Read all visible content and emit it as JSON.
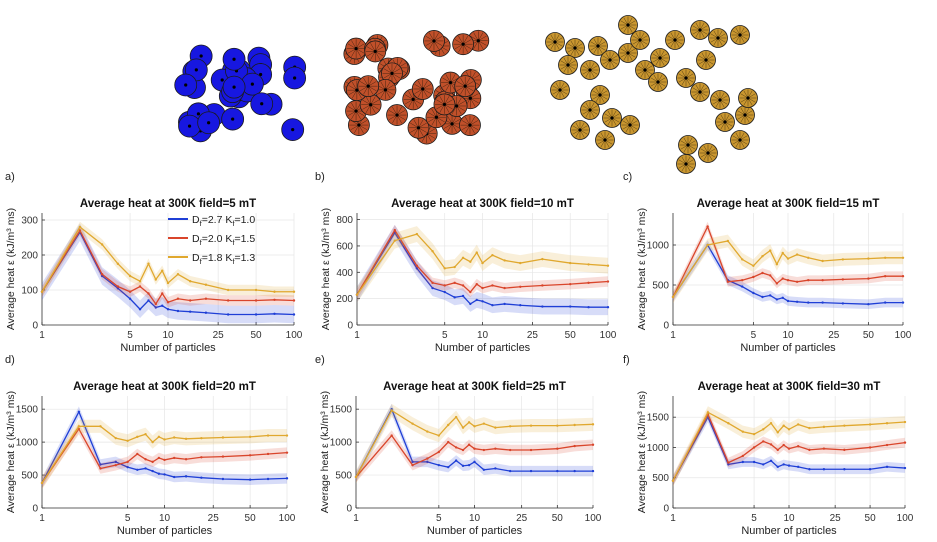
{
  "figure": {
    "colors": {
      "s1": "#1f3fd6",
      "s2": "#d9452b",
      "s3": "#e0a82e",
      "blue_cluster": "#1717e0",
      "red_cluster": "#c1502a",
      "gold_cluster": "#c9962f"
    },
    "legend": {
      "s1": {
        "main": "D",
        "sub1": "f",
        "mid": "=2.7 K",
        "sub2": "f",
        "end": "=1.0"
      },
      "s2": {
        "main": "D",
        "sub1": "f",
        "mid": "=2.0 K",
        "sub2": "f",
        "end": "=1.5"
      },
      "s3": {
        "main": "D",
        "sub1": "f",
        "mid": "=1.8 K",
        "sub2": "f",
        "end": "=1.3"
      }
    }
  },
  "chart_data": [
    {
      "panel": "a)",
      "type": "line",
      "title": "Average heat at 300K field=5 mT",
      "xlabel": "Number of particles",
      "ylabel": "Average heat ε (kJ/m³ ms)",
      "xscale": "log",
      "xlim": [
        1,
        100
      ],
      "ylim": [
        0,
        320
      ],
      "xticks": [
        1,
        5,
        10,
        25,
        50,
        100
      ],
      "xtick_labels": [
        "1",
        "5",
        "10",
        "25",
        "50",
        "100"
      ],
      "yticks": [
        0,
        100,
        200,
        300
      ],
      "ytick_labels": [
        "0",
        "100",
        "200",
        "300"
      ],
      "series": [
        {
          "name": "Df=2.7 Kf=1.0",
          "x": [
            1,
            2,
            3,
            4,
            5,
            6,
            7,
            8,
            9,
            10,
            12,
            15,
            20,
            30,
            50,
            70,
            100
          ],
          "values": [
            95,
            265,
            140,
            105,
            75,
            45,
            70,
            50,
            55,
            45,
            40,
            38,
            35,
            30,
            30,
            32,
            30
          ],
          "band": 25
        },
        {
          "name": "Df=2.0 Kf=1.5",
          "x": [
            1,
            2,
            3,
            4,
            5,
            6,
            7,
            8,
            9,
            10,
            12,
            15,
            20,
            30,
            50,
            70,
            100
          ],
          "values": [
            95,
            270,
            145,
            110,
            95,
            110,
            90,
            60,
            90,
            65,
            75,
            70,
            75,
            70,
            70,
            72,
            70
          ],
          "band": 15
        },
        {
          "name": "Df=1.8 Kf=1.3",
          "x": [
            1,
            2,
            3,
            4,
            5,
            6,
            7,
            8,
            9,
            10,
            12,
            15,
            20,
            30,
            50,
            70,
            100
          ],
          "values": [
            95,
            280,
            230,
            175,
            140,
            125,
            175,
            130,
            155,
            120,
            145,
            125,
            115,
            100,
            100,
            95,
            95
          ],
          "band": 15
        }
      ]
    },
    {
      "panel": "b)",
      "type": "line",
      "title": "Average heat at 300K field=10 mT",
      "xlabel": "Number of particles",
      "ylabel": "Average heat ε (kJ/m³ ms)",
      "xscale": "log",
      "xlim": [
        1,
        100
      ],
      "ylim": [
        0,
        850
      ],
      "xticks": [
        1,
        5,
        10,
        25,
        50,
        100
      ],
      "xtick_labels": [
        "1",
        "5",
        "10",
        "25",
        "50",
        "100"
      ],
      "yticks": [
        0,
        200,
        400,
        600,
        800
      ],
      "ytick_labels": [
        "0",
        "200",
        "400",
        "600",
        "800"
      ],
      "series": [
        {
          "name": "Df=2.7 Kf=1.0",
          "x": [
            1,
            2,
            3,
            4,
            5,
            6,
            7,
            8,
            9,
            10,
            12,
            15,
            20,
            30,
            50,
            70,
            100
          ],
          "values": [
            230,
            700,
            430,
            280,
            250,
            210,
            220,
            160,
            190,
            180,
            150,
            160,
            150,
            140,
            140,
            135,
            135
          ],
          "band": 60
        },
        {
          "name": "Df=2.0 Kf=1.5",
          "x": [
            1,
            2,
            3,
            4,
            5,
            6,
            7,
            8,
            9,
            10,
            12,
            15,
            20,
            30,
            50,
            70,
            100
          ],
          "values": [
            230,
            720,
            450,
            320,
            300,
            320,
            300,
            250,
            310,
            280,
            300,
            280,
            290,
            300,
            310,
            320,
            330
          ],
          "band": 40
        },
        {
          "name": "Df=1.8 Kf=1.3",
          "x": [
            1,
            2,
            3,
            4,
            5,
            6,
            7,
            8,
            9,
            10,
            12,
            15,
            20,
            30,
            50,
            70,
            100
          ],
          "values": [
            230,
            640,
            690,
            560,
            430,
            440,
            510,
            480,
            550,
            470,
            530,
            490,
            470,
            500,
            470,
            460,
            450
          ],
          "band": 60
        }
      ]
    },
    {
      "panel": "c)",
      "type": "line",
      "title": "Average heat at 300K field=15 mT",
      "xlabel": "Number of particles",
      "ylabel": "Average heat ε (kJ/m³ ms)",
      "xscale": "log",
      "xlim": [
        1,
        100
      ],
      "ylim": [
        0,
        1400
      ],
      "xticks": [
        1,
        5,
        10,
        25,
        50,
        100
      ],
      "xtick_labels": [
        "1",
        "5",
        "10",
        "25",
        "50",
        "100"
      ],
      "yticks": [
        0,
        500,
        1000
      ],
      "ytick_labels": [
        "0",
        "500",
        "1000"
      ],
      "series": [
        {
          "name": "Df=2.7 Kf=1.0",
          "x": [
            1,
            2,
            3,
            4,
            5,
            6,
            7,
            8,
            9,
            10,
            12,
            15,
            20,
            30,
            50,
            70,
            100
          ],
          "values": [
            350,
            1000,
            560,
            480,
            400,
            350,
            370,
            320,
            340,
            300,
            290,
            280,
            280,
            270,
            260,
            280,
            280
          ],
          "band": 60
        },
        {
          "name": "Df=2.0 Kf=1.5",
          "x": [
            1,
            2,
            3,
            4,
            5,
            6,
            7,
            8,
            9,
            10,
            12,
            15,
            20,
            30,
            50,
            70,
            100
          ],
          "values": [
            350,
            1230,
            540,
            560,
            600,
            650,
            620,
            520,
            580,
            560,
            540,
            560,
            560,
            570,
            580,
            610,
            610
          ],
          "band": 60
        },
        {
          "name": "Df=1.8 Kf=1.3",
          "x": [
            1,
            2,
            3,
            4,
            5,
            6,
            7,
            8,
            9,
            10,
            12,
            15,
            20,
            30,
            50,
            70,
            100
          ],
          "values": [
            350,
            1000,
            1050,
            820,
            740,
            860,
            930,
            760,
            900,
            830,
            880,
            840,
            800,
            820,
            830,
            840,
            840
          ],
          "band": 80
        }
      ]
    },
    {
      "panel": "d)",
      "type": "line",
      "title": "Average heat at 300K field=20 mT",
      "xlabel": "Number of particles",
      "ylabel": "Average heat ε (kJ/m³ ms)",
      "xscale": "log",
      "xlim": [
        1,
        100
      ],
      "ylim": [
        0,
        1700
      ],
      "xticks": [
        1,
        5,
        10,
        25,
        50,
        100
      ],
      "xtick_labels": [
        "1",
        "5",
        "10",
        "25",
        "50",
        "100"
      ],
      "yticks": [
        0,
        500,
        1000,
        1500
      ],
      "ytick_labels": [
        "0",
        "500",
        "1000",
        "1500"
      ],
      "series": [
        {
          "name": "Df=2.7 Kf=1.0",
          "x": [
            1,
            2,
            3,
            4,
            5,
            6,
            7,
            8,
            9,
            10,
            12,
            15,
            20,
            30,
            50,
            70,
            100
          ],
          "values": [
            380,
            1460,
            660,
            700,
            620,
            580,
            600,
            560,
            520,
            510,
            470,
            480,
            460,
            440,
            430,
            440,
            450
          ],
          "band": 80
        },
        {
          "name": "Df=2.0 Kf=1.5",
          "x": [
            1,
            2,
            3,
            4,
            5,
            6,
            7,
            8,
            9,
            10,
            12,
            15,
            20,
            30,
            50,
            70,
            100
          ],
          "values": [
            380,
            1200,
            600,
            650,
            700,
            820,
            740,
            700,
            760,
            730,
            760,
            740,
            770,
            780,
            800,
            820,
            840
          ],
          "band": 80
        },
        {
          "name": "Df=1.8 Kf=1.3",
          "x": [
            1,
            2,
            3,
            4,
            5,
            6,
            7,
            8,
            9,
            10,
            12,
            15,
            20,
            30,
            50,
            70,
            100
          ],
          "values": [
            380,
            1240,
            1240,
            1060,
            1020,
            1080,
            1120,
            1000,
            1080,
            1040,
            1070,
            1050,
            1060,
            1070,
            1080,
            1100,
            1100
          ],
          "band": 100
        }
      ]
    },
    {
      "panel": "e)",
      "type": "line",
      "title": "Average heat at 300K field=25 mT",
      "xlabel": "Number of particles",
      "ylabel": "Average heat ε (kJ/m³ ms)",
      "xscale": "log",
      "xlim": [
        1,
        100
      ],
      "ylim": [
        0,
        1700
      ],
      "xticks": [
        1,
        5,
        10,
        25,
        50,
        100
      ],
      "xtick_labels": [
        "1",
        "5",
        "10",
        "25",
        "50",
        "100"
      ],
      "yticks": [
        0,
        500,
        1000,
        1500
      ],
      "ytick_labels": [
        "0",
        "500",
        "1000",
        "1500"
      ],
      "series": [
        {
          "name": "Df=2.7 Kf=1.0",
          "x": [
            1,
            2,
            3,
            4,
            5,
            6,
            7,
            8,
            9,
            10,
            12,
            15,
            20,
            30,
            50,
            70,
            100
          ],
          "values": [
            470,
            1500,
            700,
            700,
            650,
            620,
            720,
            640,
            650,
            700,
            580,
            600,
            560,
            560,
            560,
            560,
            560
          ],
          "band": 80
        },
        {
          "name": "Df=2.0 Kf=1.5",
          "x": [
            1,
            2,
            3,
            4,
            5,
            6,
            7,
            8,
            9,
            10,
            12,
            15,
            20,
            30,
            50,
            70,
            100
          ],
          "values": [
            470,
            1100,
            650,
            750,
            850,
            1000,
            920,
            880,
            960,
            900,
            880,
            900,
            880,
            880,
            900,
            940,
            960
          ],
          "band": 80
        },
        {
          "name": "Df=1.8 Kf=1.3",
          "x": [
            1,
            2,
            3,
            4,
            5,
            6,
            7,
            8,
            9,
            10,
            12,
            15,
            20,
            30,
            50,
            70,
            100
          ],
          "values": [
            470,
            1480,
            1280,
            1160,
            1100,
            1260,
            1380,
            1220,
            1300,
            1240,
            1280,
            1220,
            1240,
            1250,
            1250,
            1260,
            1270
          ],
          "band": 100
        }
      ]
    },
    {
      "panel": "f)",
      "type": "line",
      "title": "Average heat at 300K field=30 mT",
      "xlabel": "Number of particles",
      "ylabel": "Average heat ε (kJ/m³ ms)",
      "xscale": "log",
      "xlim": [
        1,
        100
      ],
      "ylim": [
        0,
        1850
      ],
      "xticks": [
        1,
        5,
        10,
        25,
        50,
        100
      ],
      "xtick_labels": [
        "1",
        "5",
        "10",
        "25",
        "50",
        "100"
      ],
      "yticks": [
        0,
        500,
        1000,
        1500
      ],
      "ytick_labels": [
        "0",
        "500",
        "1000",
        "1500"
      ],
      "series": [
        {
          "name": "Df=2.7 Kf=1.0",
          "x": [
            1,
            2,
            3,
            4,
            5,
            6,
            7,
            8,
            9,
            10,
            12,
            15,
            20,
            30,
            50,
            70,
            100
          ],
          "values": [
            450,
            1500,
            720,
            760,
            760,
            720,
            780,
            680,
            720,
            700,
            680,
            640,
            640,
            640,
            640,
            680,
            660
          ],
          "band": 80
        },
        {
          "name": "Df=2.0 Kf=1.5",
          "x": [
            1,
            2,
            3,
            4,
            5,
            6,
            7,
            8,
            9,
            10,
            12,
            15,
            20,
            30,
            50,
            70,
            100
          ],
          "values": [
            450,
            1550,
            750,
            860,
            1000,
            1100,
            1050,
            960,
            1040,
            980,
            1020,
            960,
            980,
            960,
            1000,
            1040,
            1080
          ],
          "band": 80
        },
        {
          "name": "Df=1.8 Kf=1.3",
          "x": [
            1,
            2,
            3,
            4,
            5,
            6,
            7,
            8,
            9,
            10,
            12,
            15,
            20,
            30,
            50,
            70,
            100
          ],
          "values": [
            450,
            1580,
            1400,
            1260,
            1220,
            1300,
            1400,
            1250,
            1360,
            1300,
            1380,
            1320,
            1340,
            1360,
            1380,
            1400,
            1420
          ],
          "band": 100
        }
      ]
    }
  ]
}
